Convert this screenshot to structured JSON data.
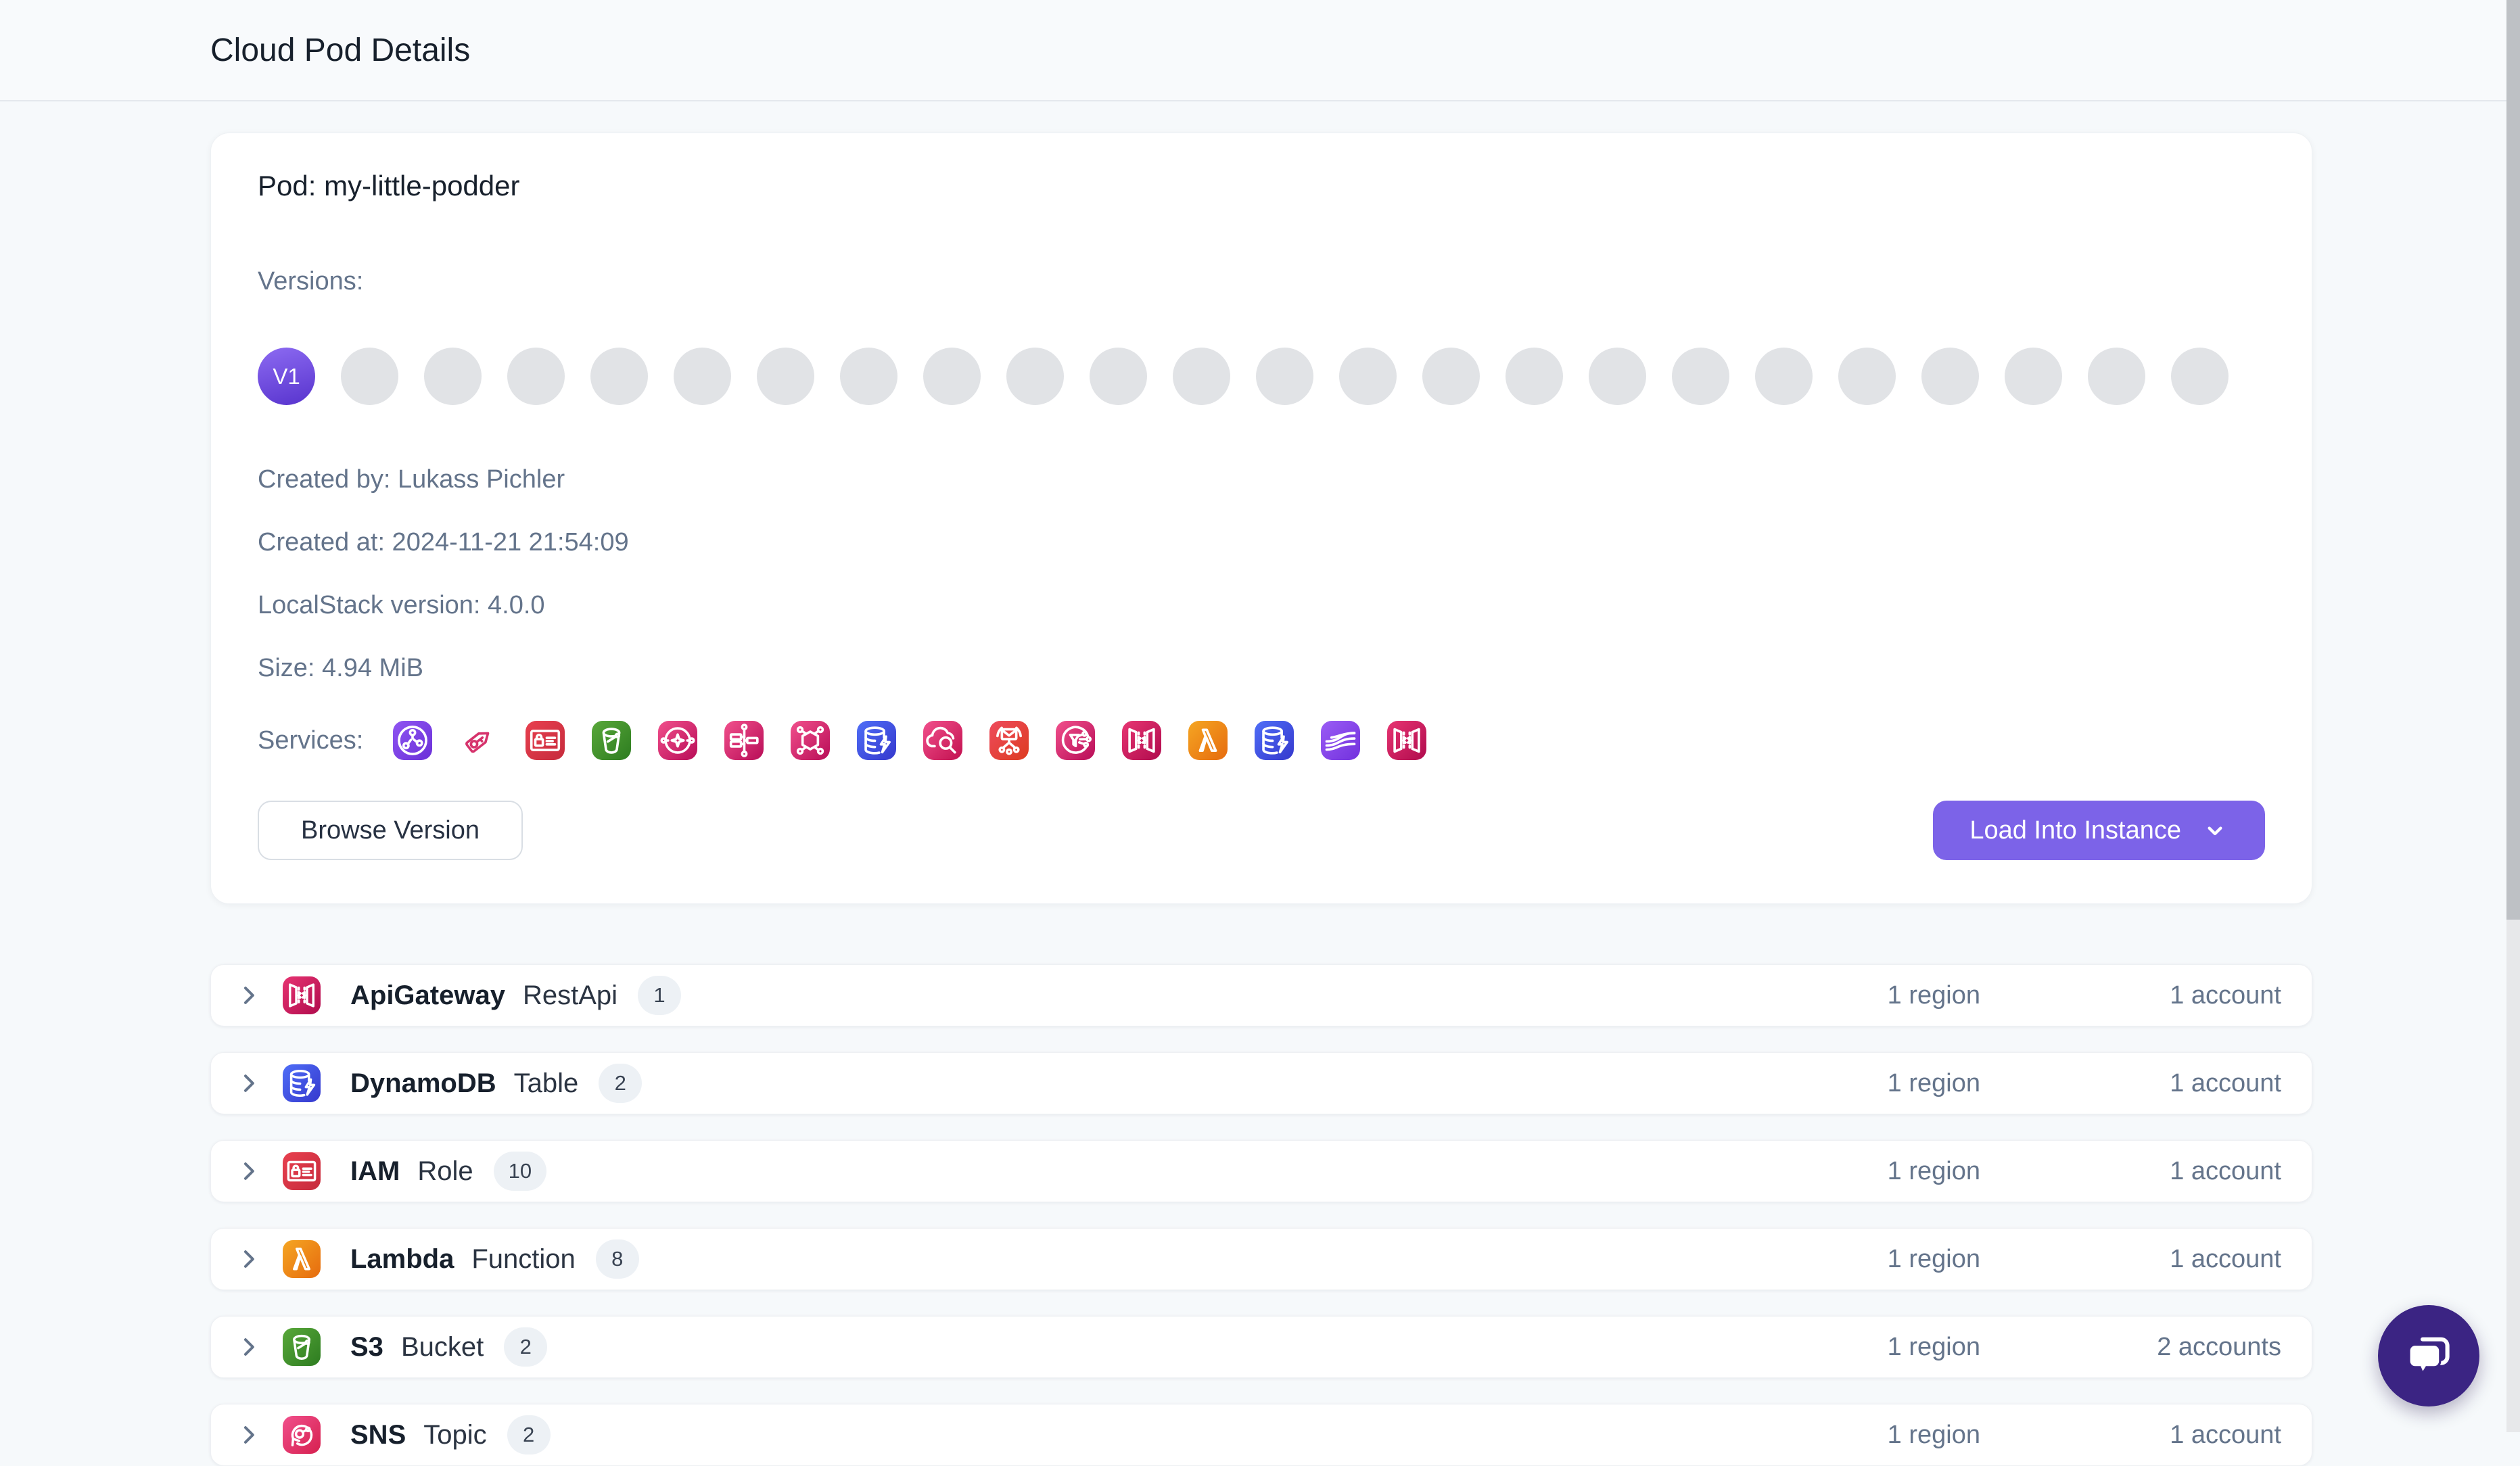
{
  "header": {
    "title": "Cloud Pod Details"
  },
  "pod": {
    "title": "Pod: my-little-podder",
    "versions_label": "Versions:",
    "versions": {
      "total": 24,
      "selected_label": "V1",
      "selected_index": 1
    },
    "meta": {
      "created_by": "Created by: Lukass Pichler",
      "created_at": "Created at: 2024-11-21 21:54:09",
      "localstack_version": "LocalStack version: 4.0.0",
      "size": "Size: 4.94 MiB"
    },
    "services_label": "Services:",
    "services": [
      {
        "name": "cloudfront",
        "glyph": "globe-nodes",
        "colors": [
          "#9055f2",
          "#6a30d8"
        ]
      },
      {
        "name": "sts",
        "glyph": "key-tag",
        "colors": [
          "#d6336c"
        ],
        "style": "plain"
      },
      {
        "name": "iam",
        "glyph": "identity-card",
        "colors": [
          "#e8404f",
          "#c62b3c"
        ]
      },
      {
        "name": "s3",
        "glyph": "bucket",
        "colors": [
          "#59a83a",
          "#2d7c20"
        ]
      },
      {
        "name": "events",
        "glyph": "eventbridge-star",
        "colors": [
          "#f1508c",
          "#b80d57"
        ]
      },
      {
        "name": "stepfunctions",
        "glyph": "workflow",
        "colors": [
          "#f1508c",
          "#b80d57"
        ]
      },
      {
        "name": "ssm",
        "glyph": "hexagon-nodes",
        "colors": [
          "#f1508c",
          "#b80d57"
        ]
      },
      {
        "name": "dynamodb",
        "glyph": "database-bolt",
        "colors": [
          "#4f6ef7",
          "#3538cd"
        ]
      },
      {
        "name": "logs",
        "glyph": "cloud-magnifier",
        "colors": [
          "#f1508c",
          "#c2104f"
        ]
      },
      {
        "name": "sns",
        "glyph": "envelope-fanout",
        "colors": [
          "#ee4b5d",
          "#dd3b20"
        ]
      },
      {
        "name": "sqs",
        "glyph": "funnel-circle",
        "colors": [
          "#f1508c",
          "#b80d57"
        ]
      },
      {
        "name": "apigateway",
        "glyph": "api-panels",
        "colors": [
          "#e73572",
          "#b00b4d"
        ]
      },
      {
        "name": "lambda",
        "glyph": "lambda",
        "colors": [
          "#f5a623",
          "#e66b0e"
        ]
      },
      {
        "name": "dynamodbstreams",
        "glyph": "database-bolt",
        "colors": [
          "#4f6ef7",
          "#3538cd"
        ]
      },
      {
        "name": "kinesis",
        "glyph": "streams",
        "colors": [
          "#9a5cf5",
          "#7231dd"
        ]
      },
      {
        "name": "apigatewayv2",
        "glyph": "api-panels",
        "colors": [
          "#e73572",
          "#b00b4d"
        ]
      }
    ],
    "actions": {
      "browse_label": "Browse Version",
      "load_label": "Load Into Instance"
    }
  },
  "resources": [
    {
      "service": "ApiGateway",
      "type": "RestApi",
      "count": "1",
      "regions": "1 region",
      "accounts": "1 account",
      "glyph": "api-panels",
      "colors": [
        "#e73572",
        "#b00b4d"
      ]
    },
    {
      "service": "DynamoDB",
      "type": "Table",
      "count": "2",
      "regions": "1 region",
      "accounts": "1 account",
      "glyph": "database-bolt",
      "colors": [
        "#4f6ef7",
        "#3538cd"
      ]
    },
    {
      "service": "IAM",
      "type": "Role",
      "count": "10",
      "regions": "1 region",
      "accounts": "1 account",
      "glyph": "identity-card",
      "colors": [
        "#e8404f",
        "#c62b3c"
      ]
    },
    {
      "service": "Lambda",
      "type": "Function",
      "count": "8",
      "regions": "1 region",
      "accounts": "1 account",
      "glyph": "lambda",
      "colors": [
        "#f5a623",
        "#e66b0e"
      ]
    },
    {
      "service": "S3",
      "type": "Bucket",
      "count": "2",
      "regions": "1 region",
      "accounts": "2 accounts",
      "glyph": "bucket",
      "colors": [
        "#59a83a",
        "#2d7c20"
      ]
    },
    {
      "service": "SNS",
      "type": "Topic",
      "count": "2",
      "regions": "1 region",
      "accounts": "1 account",
      "glyph": "topic-arrow",
      "colors": [
        "#f1508c",
        "#d6204f"
      ]
    }
  ],
  "colors": {
    "accent_purple": "#7c63e8",
    "active_version_gradient": [
      "#8a68f0",
      "#5a36cf"
    ],
    "page_background": "#f6f9fb",
    "muted_text": "#64748b",
    "chat_widget": "#3b2483"
  },
  "chat": {
    "icon": "chat-bubbles"
  }
}
